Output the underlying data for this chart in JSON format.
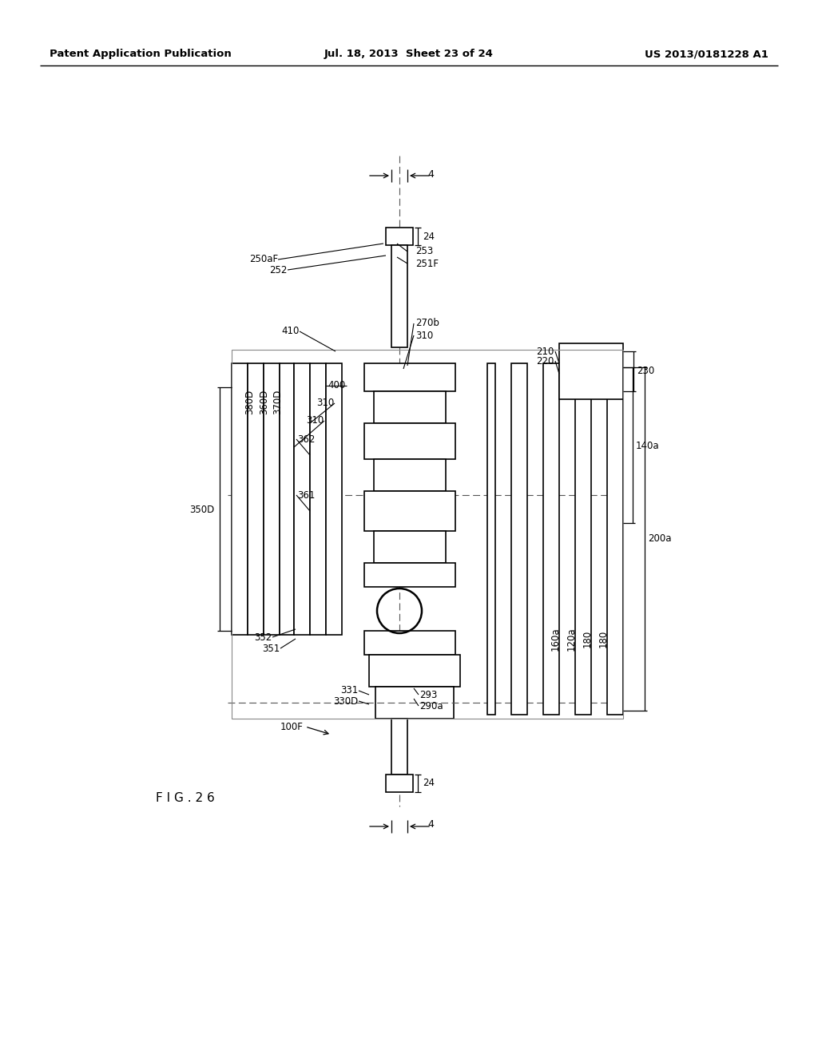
{
  "header_left": "Patent Application Publication",
  "header_mid": "Jul. 18, 2013  Sheet 23 of 24",
  "header_right": "US 2013/0181228 A1",
  "fig_label": "F I G . 2 6",
  "background_color": "#ffffff",
  "line_color": "#000000"
}
